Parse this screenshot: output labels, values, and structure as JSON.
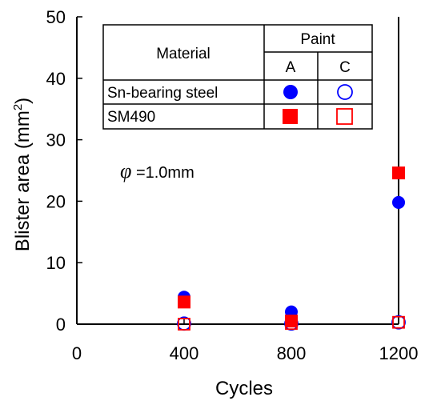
{
  "chart_data": {
    "type": "scatter",
    "xlabel": "Cycles",
    "ylabel": "Blister area (mm",
    "ylabel_sup": "2",
    "ylabel_end": ")",
    "xlim": [
      0,
      1200
    ],
    "ylim": [
      0,
      50
    ],
    "x_ticks": [
      "0",
      "400",
      "800",
      "1200"
    ],
    "y_ticks": [
      "0",
      "10",
      "20",
      "30",
      "40",
      "50"
    ],
    "grid": false,
    "legend_position": "top-right",
    "annotation_symbol": "φ",
    "annotation": " =1.0mm",
    "legend": {
      "header_material": "Material",
      "header_paint": "Paint",
      "col_a": "A",
      "col_c": "C",
      "row1": "Sn-bearing steel",
      "row2": "SM490"
    },
    "series": [
      {
        "material": "Sn-bearing steel",
        "paint": "A",
        "marker": "filled-circle",
        "color": "#0000ff",
        "x": [
          400,
          800,
          1200
        ],
        "y": [
          4.4,
          2.0,
          19.8
        ]
      },
      {
        "material": "Sn-bearing steel",
        "paint": "C",
        "marker": "open-circle",
        "color": "#0000ff",
        "x": [
          400,
          800,
          1200
        ],
        "y": [
          0.1,
          0.1,
          0.3
        ]
      },
      {
        "material": "SM490",
        "paint": "A",
        "marker": "filled-square",
        "color": "#ff0000",
        "x": [
          400,
          800,
          1200
        ],
        "y": [
          3.6,
          0.5,
          24.6
        ]
      },
      {
        "material": "SM490",
        "paint": "C",
        "marker": "open-square",
        "color": "#ff0000",
        "x": [
          400,
          800,
          1200
        ],
        "y": [
          0.0,
          0.1,
          0.3
        ]
      }
    ]
  }
}
